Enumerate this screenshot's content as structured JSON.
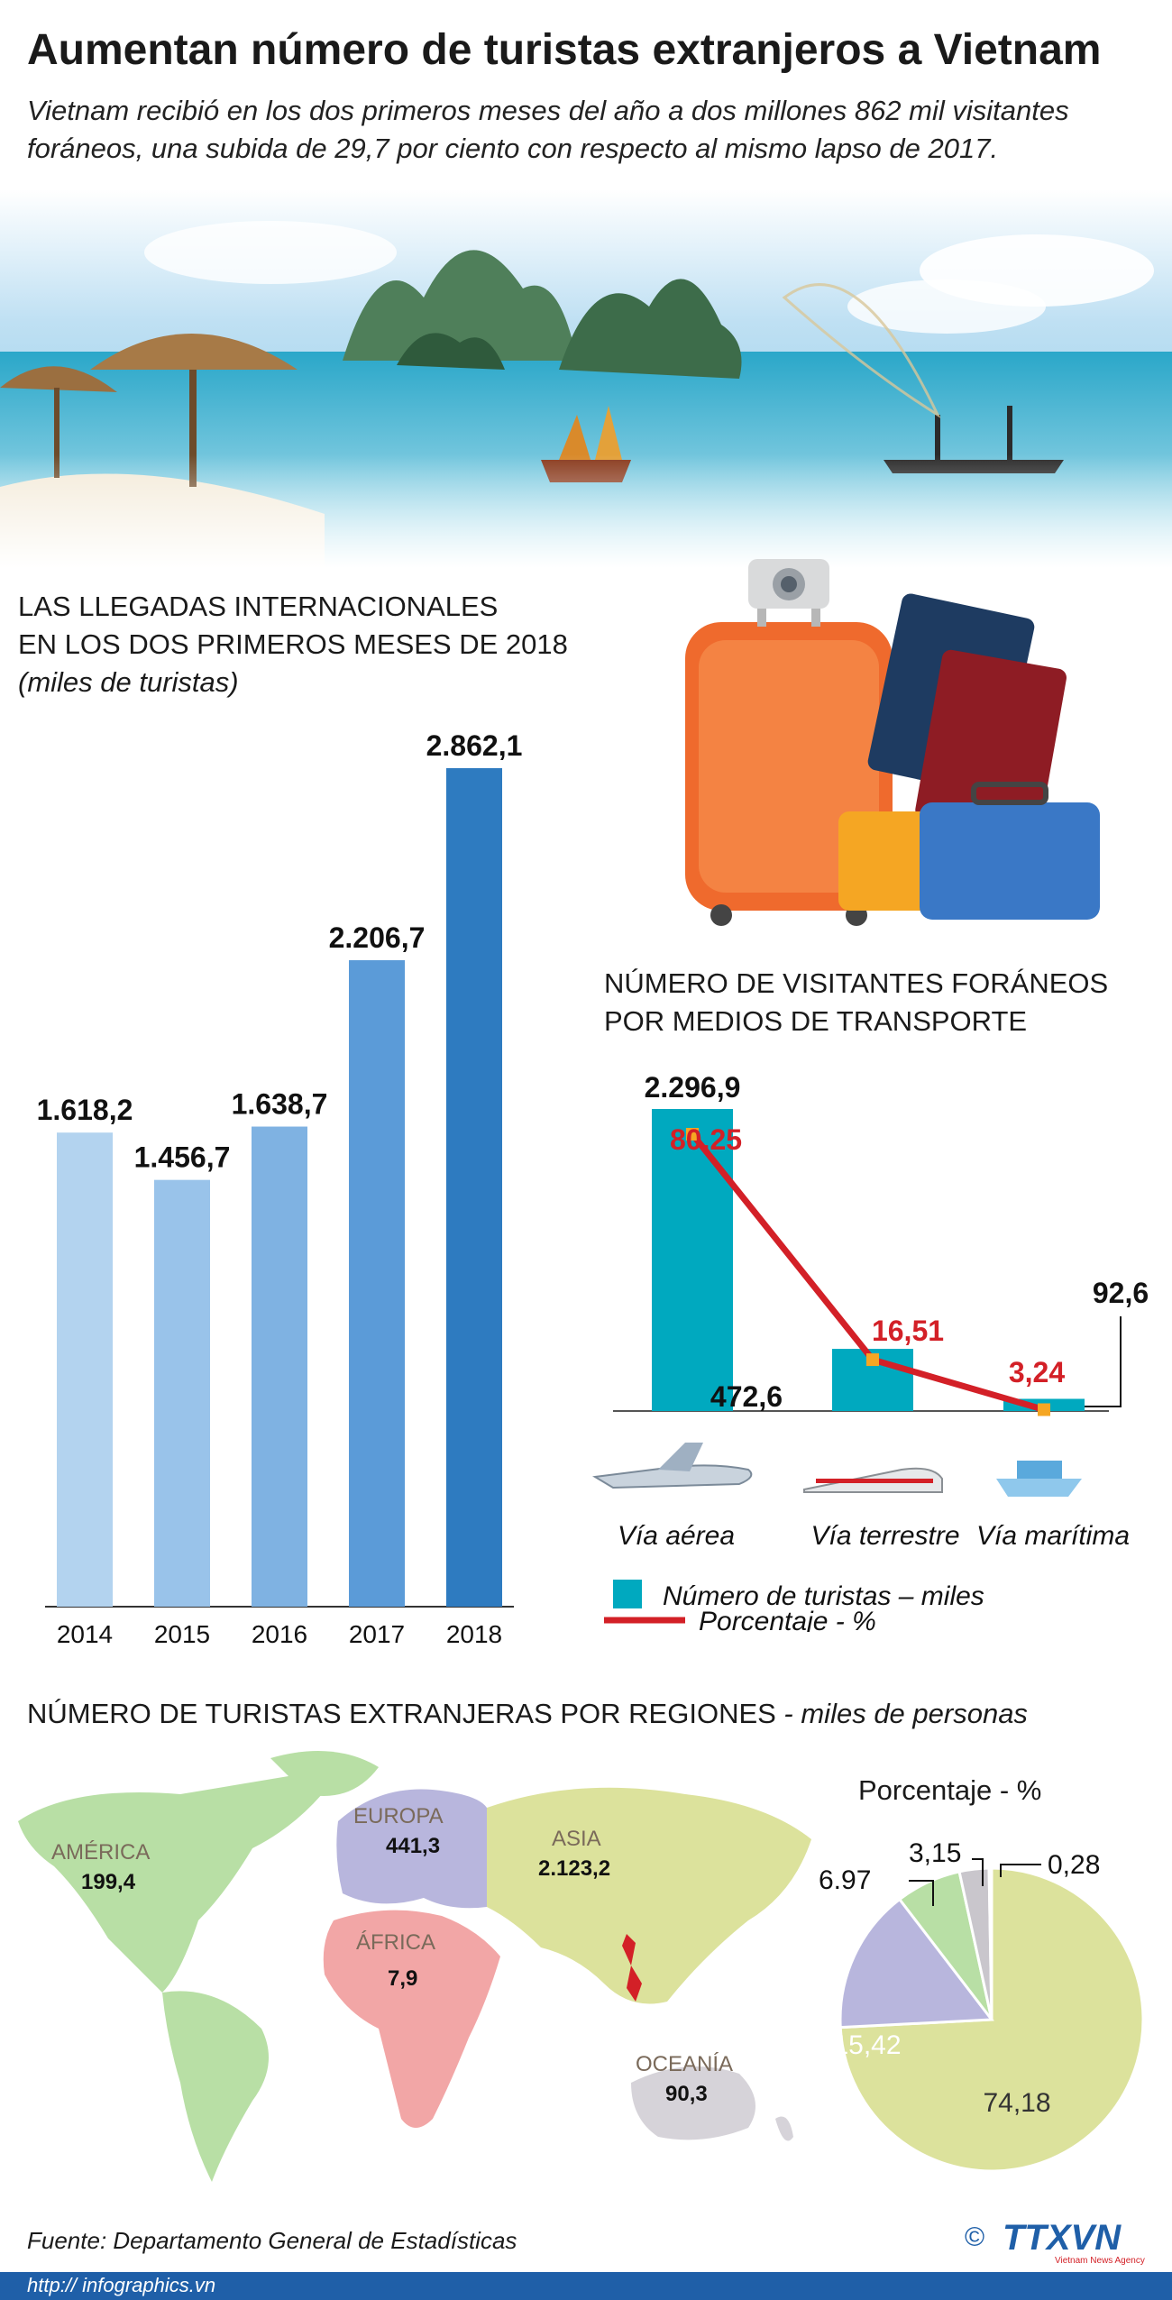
{
  "header": {
    "title": "Aumentan número de turistas extranjeros a Vietnam",
    "subtitle": "Vietnam recibió en los dos primeros meses del año a dos millones 862 mil visitantes foráneos, una subida de 29,7 por ciento con respecto al mismo lapso de 2017."
  },
  "colors": {
    "bar_2014": "#b3d3ef",
    "bar_2015": "#99c3ea",
    "bar_2016": "#7fb2e2",
    "bar_2017": "#5b9bd8",
    "bar_2018": "#2e7bc0",
    "transport_bar": "#00a9bf",
    "line": "#d32027",
    "pie_asia": "#dce29c",
    "pie_europa": "#b8b6dd",
    "pie_america": "#b8dfa5",
    "pie_oceania": "#c9c6cc",
    "pie_africa": "#f2a6a6",
    "footer": "#1f5fa8"
  },
  "arrivals": {
    "heading_line1": "LAS LLEGADAS INTERNACIONALES",
    "heading_line2": "EN LOS DOS PRIMEROS MESES DE 2018",
    "unit": "(miles de turistas)"
  },
  "transport": {
    "heading_line1": "NÚMERO DE VISITANTES FORÁNEOS",
    "heading_line2": "POR MEDIOS DE TRANSPORTE",
    "legend_bars": "Número de turistas – miles",
    "legend_line": "Porcentaje - %"
  },
  "regions": {
    "heading": "NÚMERO DE TURISTAS EXTRANJERAS POR REGIONES",
    "heading_unit": " - miles de personas",
    "pie_title": "Porcentaje - %",
    "items": [
      {
        "name": "AMÉRICA",
        "value": "199,4"
      },
      {
        "name": "EUROPA",
        "value": "441,3"
      },
      {
        "name": "ASIA",
        "value": "2.123,2"
      },
      {
        "name": "ÁFRICA",
        "value": "7,9"
      },
      {
        "name": "OCEANÍA",
        "value": "90,3"
      }
    ]
  },
  "footer": {
    "source": "Fuente: Departamento General de Estadísticas",
    "url": "http:// infographics.vn",
    "copyright": "©",
    "logo_text": "TTXVN",
    "logo_sub": "Vietnam News Agency"
  },
  "chart_data": [
    {
      "type": "bar",
      "categories": [
        "2014",
        "2015",
        "2016",
        "2017",
        "2018"
      ],
      "values": [
        1618.2,
        1456.7,
        1638.7,
        2206.7,
        2862.1
      ],
      "labels": [
        "1.618,2",
        "1.456,7",
        "1.638,7",
        "2.206,7",
        "2.862,1"
      ],
      "title": "LAS LLEGADAS INTERNACIONALES EN LOS DOS PRIMEROS MESES DE 2018",
      "ylabel": "(miles de turistas)",
      "ylim": [
        0,
        2862.1
      ],
      "grid": false
    },
    {
      "type": "bar",
      "categories": [
        "Vía aérea",
        "Vía terrestre",
        "Vía marítima"
      ],
      "series": [
        {
          "name": "Número de turistas – miles",
          "type": "bar",
          "values": [
            2296.9,
            472.6,
            92.6
          ],
          "labels": [
            "2.296,9",
            "472,6",
            "92,6"
          ]
        },
        {
          "name": "Porcentaje - %",
          "type": "line",
          "values": [
            80.25,
            16.51,
            3.24
          ],
          "labels": [
            "80,25",
            "16,51",
            "3,24"
          ]
        }
      ],
      "title": "NÚMERO DE VISITANTES FORÁNEOS POR MEDIOS DE TRANSPORTE",
      "ylim": [
        0,
        2296.9
      ],
      "legend": "bottom"
    },
    {
      "type": "pie",
      "title": "Porcentaje - %",
      "categories": [
        "Asia",
        "Europa",
        "América",
        "Oceanía",
        "África"
      ],
      "values": [
        74.18,
        15.42,
        6.97,
        3.15,
        0.28
      ],
      "labels": [
        "74,18",
        "15,42",
        "6.97",
        "3,15",
        "0,28"
      ]
    }
  ]
}
